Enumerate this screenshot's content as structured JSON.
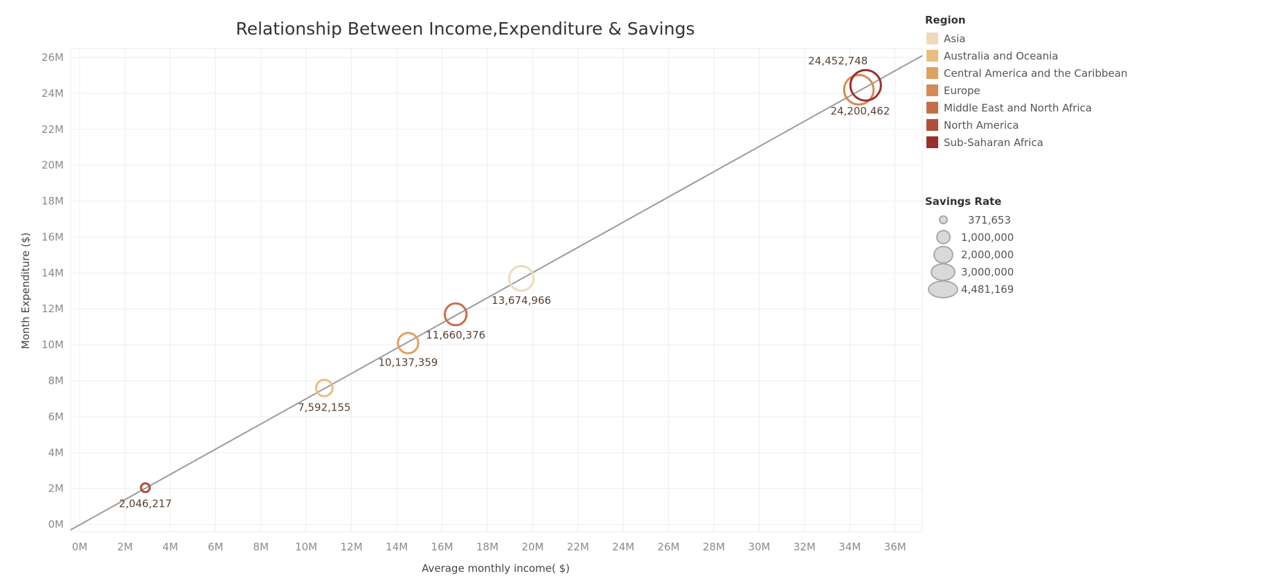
{
  "chart_data": {
    "type": "scatter",
    "title": "Relationship Between Income,Expenditure & Savings",
    "xlabel": "Average monthly income( $)",
    "ylabel": "Month Expenditure ($)",
    "xlim": [
      -0.4,
      37.2
    ],
    "ylim": [
      -0.4,
      26.5
    ],
    "xticks": [
      0,
      2,
      4,
      6,
      8,
      10,
      12,
      14,
      16,
      18,
      20,
      22,
      24,
      26,
      28,
      30,
      32,
      34,
      36
    ],
    "yticks": [
      0,
      2,
      4,
      6,
      8,
      10,
      12,
      14,
      16,
      18,
      20,
      22,
      24,
      26
    ],
    "tick_suffix": "M",
    "trend_line": {
      "x": [
        -0.4,
        37.2
      ],
      "y": [
        -0.3,
        26.1
      ]
    },
    "points": [
      {
        "region": "North America",
        "x": 2.9,
        "y": 2.05,
        "savings": 371653,
        "label": "2,046,217"
      },
      {
        "region": "Australia and Oceania",
        "x": 10.8,
        "y": 7.6,
        "savings": 1300000,
        "label": "7,592,155"
      },
      {
        "region": "Central America and the Caribbean",
        "x": 14.5,
        "y": 10.1,
        "savings": 2000000,
        "label": "10,137,359"
      },
      {
        "region": "Middle East and North Africa",
        "x": 16.6,
        "y": 11.7,
        "savings": 2300000,
        "label": "11,660,376"
      },
      {
        "region": "Asia",
        "x": 19.5,
        "y": 13.7,
        "savings": 2900000,
        "label": "13,674,966"
      },
      {
        "region": "Europe",
        "x": 34.4,
        "y": 24.2,
        "savings": 4200000,
        "label": "24,200,462"
      },
      {
        "region": "Sub-Saharan Africa",
        "x": 34.7,
        "y": 24.45,
        "savings": 4481169,
        "label": "24,452,748"
      }
    ]
  },
  "legend": {
    "title": "Region",
    "items": [
      {
        "label": "Asia",
        "color": "#efd9bb"
      },
      {
        "label": "Australia and Oceania",
        "color": "#ebbd80"
      },
      {
        "label": "Central America and the Caribbean",
        "color": "#e0a060"
      },
      {
        "label": "Europe",
        "color": "#d48a55"
      },
      {
        "label": "Middle East and North Africa",
        "color": "#c66e48"
      },
      {
        "label": "North America",
        "color": "#b04e38"
      },
      {
        "label": "Sub-Saharan Africa",
        "color": "#9a2f2c"
      }
    ]
  },
  "size_legend": {
    "title": "Savings Rate",
    "items": [
      {
        "label": "371,653",
        "value": 371653
      },
      {
        "label": "1,000,000",
        "value": 1000000
      },
      {
        "label": "2,000,000",
        "value": 2000000
      },
      {
        "label": "3,000,000",
        "value": 3000000
      },
      {
        "label": "4,481,169",
        "value": 4481169
      }
    ]
  }
}
